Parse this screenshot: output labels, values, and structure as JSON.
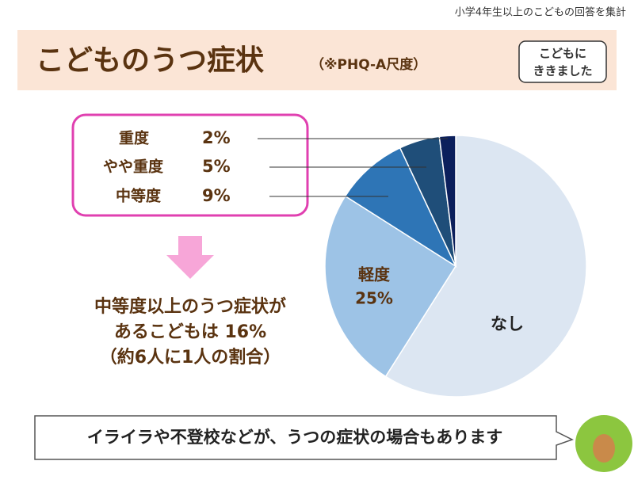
{
  "header": {
    "note": "小学4年生以上のこどもの回答を集計",
    "title": "こどものうつ症状",
    "subtitle": "（※PHQ-A尺度）",
    "badge": [
      "こどもに",
      "ききました"
    ]
  },
  "chart_data": {
    "type": "pie",
    "categories": [
      "なし",
      "軽度",
      "中等度",
      "やや重度",
      "重度"
    ],
    "values": [
      59,
      25,
      9,
      5,
      2
    ],
    "value_labels": [
      null,
      "25%",
      "9%",
      "5%",
      "2%"
    ],
    "colors": [
      "#dce6f2",
      "#9dc3e6",
      "#2e75b6",
      "#1f4e79",
      "#0b1f5c"
    ]
  },
  "summary": [
    "中等度以上のうつ症状が",
    "あるこどもは 16%",
    "（約6人に1人の割合）"
  ],
  "footer": "イライラや不登校などが、うつの症状の場合もあります"
}
